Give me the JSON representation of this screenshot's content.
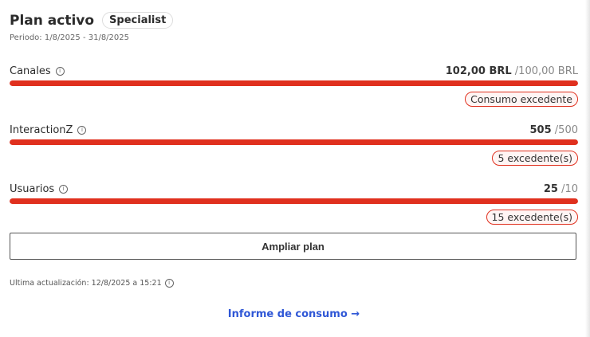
{
  "header": {
    "title": "Plan activo",
    "plan_badge": "Specialist",
    "period": "Periodo: 1/8/2025 - 31/8/2025"
  },
  "metrics": [
    {
      "label": "Canales",
      "used": "102,00 BRL",
      "limit": "/100,00 BRL",
      "progress_percent": 100,
      "badge": "Consumo excedente"
    },
    {
      "label": "InteractionZ",
      "used": "505",
      "limit": "/500",
      "progress_percent": 100,
      "badge": "5 excedente(s)"
    },
    {
      "label": "Usuarios",
      "used": "25",
      "limit": "/10",
      "progress_percent": 100,
      "badge": "15 excedente(s)"
    }
  ],
  "actions": {
    "upgrade": "Ampliar plan",
    "report_link": "Informe de consumo →"
  },
  "footer": {
    "last_update": "Ultima actualización: 12/8/2025 a 15:21"
  },
  "colors": {
    "bar": "#e0301e",
    "link": "#2f57d6"
  },
  "icons": {
    "info": "info-icon",
    "arrow": "arrow-right-icon"
  }
}
